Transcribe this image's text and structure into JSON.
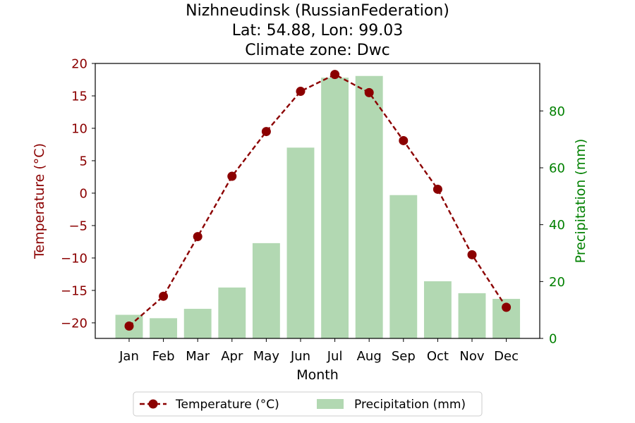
{
  "chart_data": {
    "type": "bar+line",
    "title_lines": [
      "Nizhneudinsk (RussianFederation)",
      "Lat: 54.88, Lon: 99.03",
      "Climate zone: Dwc"
    ],
    "xlabel": "Month",
    "ylabel_left": "Temperature (°C)",
    "ylabel_right": "Precipitation (mm)",
    "categories": [
      "Jan",
      "Feb",
      "Mar",
      "Apr",
      "May",
      "Jun",
      "Jul",
      "Aug",
      "Sep",
      "Oct",
      "Nov",
      "Dec"
    ],
    "ylim_left": [
      -22.4,
      20.0
    ],
    "ylim_right": [
      0,
      96.7
    ],
    "yticks_left": [
      -20,
      -15,
      -10,
      -5,
      0,
      5,
      10,
      15,
      20
    ],
    "yticks_left_labels": [
      "−20",
      "−15",
      "−10",
      "−5",
      "0",
      "5",
      "10",
      "15",
      "20"
    ],
    "yticks_right": [
      0,
      20,
      40,
      60,
      80
    ],
    "yticks_right_labels": [
      "0",
      "20",
      "40",
      "60",
      "80"
    ],
    "series": [
      {
        "name": "Temperature (°C)",
        "type": "line",
        "axis": "left",
        "color": "#8b0000",
        "line_style": "dashed",
        "marker": "circle",
        "values": [
          -20.5,
          -15.9,
          -6.7,
          2.6,
          9.5,
          15.7,
          18.3,
          15.5,
          8.1,
          0.6,
          -9.5,
          -17.6
        ]
      },
      {
        "name": "Precipitation (mm)",
        "type": "bar",
        "axis": "right",
        "color": "#b2d8b2",
        "values": [
          8.3,
          7.1,
          10.4,
          17.9,
          33.5,
          67.1,
          91.7,
          92.3,
          50.4,
          20.1,
          15.9,
          13.9
        ]
      }
    ],
    "legend": {
      "placement": "bottom-center",
      "entries": [
        "Temperature (°C)",
        "Precipitation (mm)"
      ]
    },
    "colors": {
      "left_axis": "#8b0000",
      "right_axis": "#008000",
      "text": "#000000"
    },
    "grid": false
  }
}
